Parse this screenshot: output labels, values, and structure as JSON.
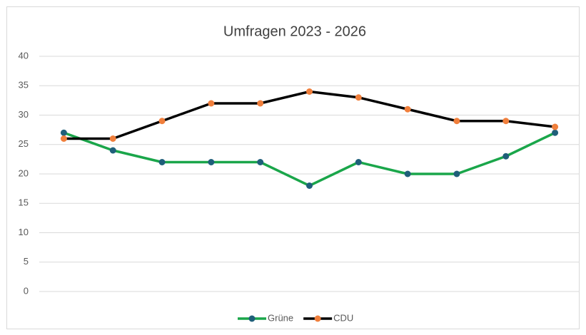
{
  "chart_data": {
    "type": "line",
    "title": "Umfragen 2023 - 2026",
    "series": [
      {
        "name": "Grüne",
        "color": "#1aa64a",
        "marker_color": "#1f5f7a",
        "values": [
          27,
          24,
          22,
          22,
          22,
          18,
          22,
          20,
          20,
          23,
          27
        ]
      },
      {
        "name": "CDU",
        "color": "#000000",
        "marker_color": "#f07f3c",
        "values": [
          26,
          26,
          29,
          32,
          32,
          34,
          33,
          31,
          29,
          29,
          28
        ]
      }
    ],
    "ylim": [
      0,
      40
    ],
    "yticks": [
      0,
      5,
      10,
      15,
      20,
      25,
      30,
      35,
      40
    ],
    "grid": true,
    "legend": "bottom"
  }
}
